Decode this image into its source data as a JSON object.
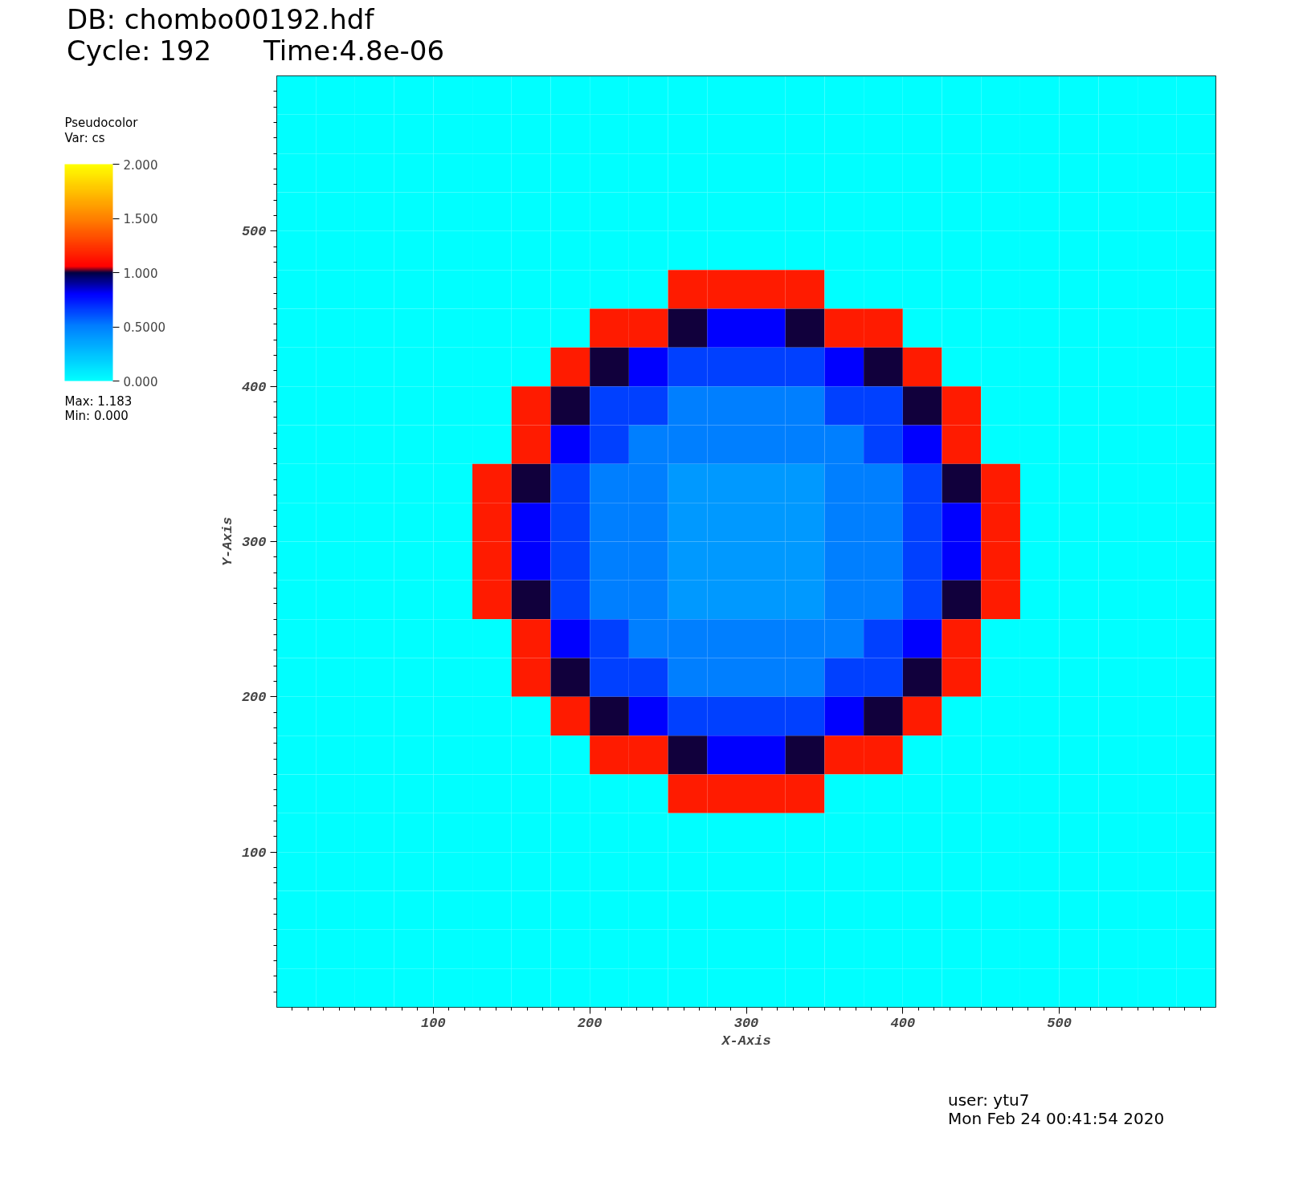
{
  "chart_data": {
    "type": "heatmap",
    "title": "DB: chombo00192.hdf",
    "subtitle": "Cycle: 192      Time:4.8e-06",
    "xlabel": "X-Axis",
    "ylabel": "Y-Axis",
    "legend_title": "Pseudocolor",
    "clabel": "Var: cs",
    "x": [
      12.5,
      37.5,
      62.5,
      87.5,
      112.5,
      137.5,
      162.5,
      187.5,
      212.5,
      237.5,
      262.5,
      287.5,
      312.5,
      337.5,
      362.5,
      387.5,
      412.5,
      437.5,
      462.5,
      487.5,
      512.5,
      537.5,
      562.5,
      587.5
    ],
    "xlim": [
      0,
      600
    ],
    "ylim": [
      0,
      600
    ],
    "xticks": [
      100,
      200,
      300,
      400,
      500
    ],
    "yticks": [
      100,
      200,
      300,
      400,
      500
    ],
    "clim": [
      0,
      2
    ],
    "cticks": [
      {
        "value": 0,
        "label": "0.000"
      },
      {
        "value": 0.5,
        "label": "0.5000"
      },
      {
        "value": 1,
        "label": "1.000"
      },
      {
        "value": 1.5,
        "label": "1.500"
      },
      {
        "value": 2,
        "label": "2.000"
      }
    ],
    "cells": [
      [
        0,
        0,
        0,
        0,
        0,
        0,
        0,
        0,
        0,
        0,
        0,
        0,
        0,
        0,
        0,
        0,
        0,
        0,
        0,
        0,
        0,
        0,
        0,
        0
      ],
      [
        0,
        0,
        0,
        0,
        0,
        0,
        0,
        0,
        0,
        0,
        0,
        0,
        0,
        0,
        0,
        0,
        0,
        0,
        0,
        0,
        0,
        0,
        0,
        0
      ],
      [
        0,
        0,
        0,
        0,
        0,
        0,
        0,
        0,
        0,
        0,
        0,
        0,
        0,
        0,
        0,
        0,
        0,
        0,
        0,
        0,
        0,
        0,
        0,
        0
      ],
      [
        0,
        0,
        0,
        0,
        0,
        0,
        0,
        0,
        0,
        0,
        0,
        0,
        0,
        0,
        0,
        0,
        0,
        0,
        0,
        0,
        0,
        0,
        0,
        0
      ],
      [
        0,
        0,
        0,
        0,
        0,
        0,
        0,
        0,
        0,
        0,
        0,
        0,
        0,
        0,
        0,
        0,
        0,
        0,
        0,
        0,
        0,
        0,
        0,
        0
      ],
      [
        0,
        0,
        0,
        0,
        0,
        0,
        0,
        0,
        0,
        0,
        1.15,
        1.15,
        1.15,
        1.15,
        0,
        0,
        0,
        0,
        0,
        0,
        0,
        0,
        0,
        0
      ],
      [
        0,
        0,
        0,
        0,
        0,
        0,
        0,
        0,
        1.15,
        1.15,
        1.0,
        0.8,
        0.8,
        1.0,
        1.15,
        1.15,
        0,
        0,
        0,
        0,
        0,
        0,
        0,
        0
      ],
      [
        0,
        0,
        0,
        0,
        0,
        0,
        0,
        1.15,
        1.0,
        0.8,
        0.65,
        0.65,
        0.65,
        0.65,
        0.8,
        1.0,
        1.15,
        0,
        0,
        0,
        0,
        0,
        0,
        0
      ],
      [
        0,
        0,
        0,
        0,
        0,
        0,
        1.15,
        1.0,
        0.65,
        0.65,
        0.5,
        0.5,
        0.5,
        0.5,
        0.65,
        0.65,
        1.0,
        1.15,
        0,
        0,
        0,
        0,
        0,
        0
      ],
      [
        0,
        0,
        0,
        0,
        0,
        0,
        1.15,
        0.8,
        0.65,
        0.5,
        0.5,
        0.5,
        0.5,
        0.5,
        0.5,
        0.65,
        0.8,
        1.15,
        0,
        0,
        0,
        0,
        0,
        0
      ],
      [
        0,
        0,
        0,
        0,
        0,
        1.15,
        1.0,
        0.65,
        0.5,
        0.5,
        0.4,
        0.4,
        0.4,
        0.4,
        0.5,
        0.5,
        0.65,
        1.0,
        1.15,
        0,
        0,
        0,
        0,
        0
      ],
      [
        0,
        0,
        0,
        0,
        0,
        1.15,
        0.8,
        0.65,
        0.5,
        0.5,
        0.4,
        0.4,
        0.4,
        0.4,
        0.5,
        0.5,
        0.65,
        0.8,
        1.15,
        0,
        0,
        0,
        0,
        0
      ],
      [
        0,
        0,
        0,
        0,
        0,
        1.15,
        0.8,
        0.65,
        0.5,
        0.5,
        0.4,
        0.4,
        0.4,
        0.4,
        0.5,
        0.5,
        0.65,
        0.8,
        1.15,
        0,
        0,
        0,
        0,
        0
      ],
      [
        0,
        0,
        0,
        0,
        0,
        1.15,
        1.0,
        0.65,
        0.5,
        0.5,
        0.4,
        0.4,
        0.4,
        0.4,
        0.5,
        0.5,
        0.65,
        1.0,
        1.15,
        0,
        0,
        0,
        0,
        0
      ],
      [
        0,
        0,
        0,
        0,
        0,
        0,
        1.15,
        0.8,
        0.65,
        0.5,
        0.5,
        0.5,
        0.5,
        0.5,
        0.5,
        0.65,
        0.8,
        1.15,
        0,
        0,
        0,
        0,
        0,
        0
      ],
      [
        0,
        0,
        0,
        0,
        0,
        0,
        1.15,
        1.0,
        0.65,
        0.65,
        0.5,
        0.5,
        0.5,
        0.5,
        0.65,
        0.65,
        1.0,
        1.15,
        0,
        0,
        0,
        0,
        0,
        0
      ],
      [
        0,
        0,
        0,
        0,
        0,
        0,
        0,
        1.15,
        1.0,
        0.8,
        0.65,
        0.65,
        0.65,
        0.65,
        0.8,
        1.0,
        1.15,
        0,
        0,
        0,
        0,
        0,
        0,
        0
      ],
      [
        0,
        0,
        0,
        0,
        0,
        0,
        0,
        0,
        1.15,
        1.15,
        1.0,
        0.8,
        0.8,
        1.0,
        1.15,
        1.15,
        0,
        0,
        0,
        0,
        0,
        0,
        0,
        0
      ],
      [
        0,
        0,
        0,
        0,
        0,
        0,
        0,
        0,
        0,
        0,
        1.15,
        1.15,
        1.15,
        1.15,
        0,
        0,
        0,
        0,
        0,
        0,
        0,
        0,
        0,
        0
      ],
      [
        0,
        0,
        0,
        0,
        0,
        0,
        0,
        0,
        0,
        0,
        0,
        0,
        0,
        0,
        0,
        0,
        0,
        0,
        0,
        0,
        0,
        0,
        0,
        0
      ],
      [
        0,
        0,
        0,
        0,
        0,
        0,
        0,
        0,
        0,
        0,
        0,
        0,
        0,
        0,
        0,
        0,
        0,
        0,
        0,
        0,
        0,
        0,
        0,
        0
      ],
      [
        0,
        0,
        0,
        0,
        0,
        0,
        0,
        0,
        0,
        0,
        0,
        0,
        0,
        0,
        0,
        0,
        0,
        0,
        0,
        0,
        0,
        0,
        0,
        0
      ],
      [
        0,
        0,
        0,
        0,
        0,
        0,
        0,
        0,
        0,
        0,
        0,
        0,
        0,
        0,
        0,
        0,
        0,
        0,
        0,
        0,
        0,
        0,
        0,
        0
      ],
      [
        0,
        0,
        0,
        0,
        0,
        0,
        0,
        0,
        0,
        0,
        0,
        0,
        0,
        0,
        0,
        0,
        0,
        0,
        0,
        0,
        0,
        0,
        0,
        0
      ]
    ],
    "annotations": [
      "Max:  1.183",
      "Min:  0.000",
      "user: ytu7",
      "Mon Feb 24 00:41:54 2020"
    ]
  }
}
